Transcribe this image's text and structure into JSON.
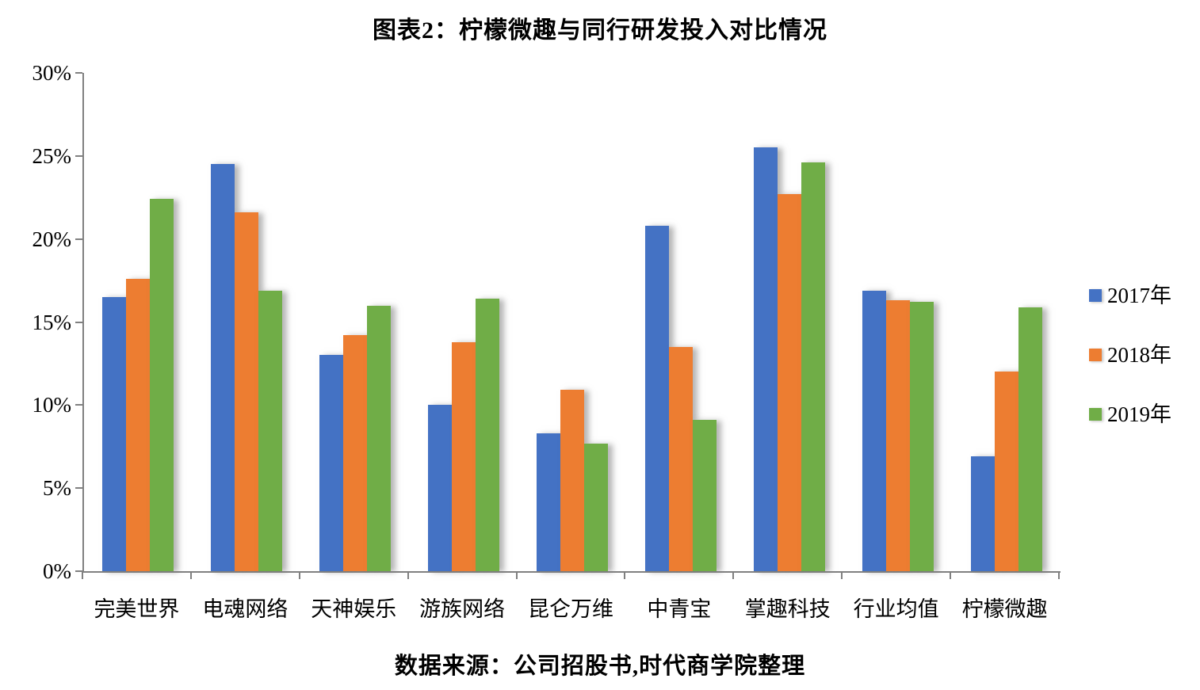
{
  "page": {
    "background": "#ffffff"
  },
  "chart_data": {
    "type": "bar",
    "title": "图表2：柠檬微趣与同行研发投入对比情况",
    "source_note": "数据来源：公司招股书,时代商学院整理",
    "categories": [
      "完美世界",
      "电魂网络",
      "天神娱乐",
      "游族网络",
      "昆仑万维",
      "中青宝",
      "掌趣科技",
      "行业均值",
      "柠檬微趣"
    ],
    "series": [
      {
        "name": "2017年",
        "color": "#4472C4",
        "values": [
          16.5,
          24.5,
          13.0,
          10.0,
          8.3,
          20.8,
          25.5,
          16.9,
          6.9
        ]
      },
      {
        "name": "2018年",
        "color": "#ED7D31",
        "values": [
          17.6,
          21.6,
          14.2,
          13.8,
          10.9,
          13.5,
          22.7,
          16.3,
          12.0
        ]
      },
      {
        "name": "2019年",
        "color": "#70AD47",
        "values": [
          22.4,
          16.9,
          16.0,
          16.4,
          7.7,
          9.1,
          24.6,
          16.2,
          15.9
        ]
      }
    ],
    "ylim": [
      0,
      30
    ],
    "ytick_step": 5,
    "ytick_labels": [
      "0%",
      "5%",
      "10%",
      "15%",
      "20%",
      "25%",
      "30%"
    ],
    "unit": "%",
    "grid": false,
    "legend_position": "right",
    "axis_color": "#808080"
  }
}
